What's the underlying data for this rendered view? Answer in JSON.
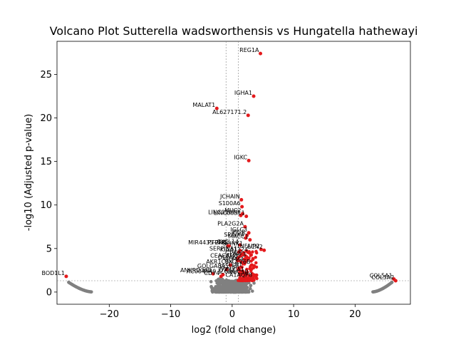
{
  "chart_data": {
    "type": "scatter",
    "title": "Volcano Plot Sutterella wadsworthensis vs Hungatella hathewayi",
    "xlabel": "log2 (fold change)",
    "ylabel": "-log10 (Adjusted p-value)",
    "xlim": [
      -28.5,
      29.0
    ],
    "ylim": [
      -1.4,
      28.8
    ],
    "xticks": [
      -20,
      -10,
      0,
      10,
      20
    ],
    "yticks": [
      0,
      5,
      10,
      15,
      20,
      25
    ],
    "grid": false,
    "thresholds": {
      "fold_change_lines": [
        -1,
        1
      ],
      "pvalue_line": 1.3
    },
    "colors": {
      "significant": "#e41a1c",
      "nonsignificant": "#808080",
      "threshold": "#808080"
    },
    "significant_points": [
      {
        "label": "REG1A",
        "x": 4.6,
        "y": 27.4
      },
      {
        "label": "IGHA1",
        "x": 3.5,
        "y": 22.5
      },
      {
        "label": "MALAT1",
        "x": -2.5,
        "y": 21.1
      },
      {
        "label": "AL627171.2",
        "x": 2.6,
        "y": 20.3
      },
      {
        "label": "IGKC",
        "x": 2.7,
        "y": 15.1
      },
      {
        "label": "JCHAIN",
        "x": 1.5,
        "y": 10.6
      },
      {
        "label": "S100A6",
        "x": 1.6,
        "y": 9.8
      },
      {
        "label": "MUC2",
        "x": 1.7,
        "y": 9.0
      },
      {
        "label": "LINC01088",
        "x": 1.4,
        "y": 8.8
      },
      {
        "label": "LINC00511",
        "x": 2.3,
        "y": 8.7
      },
      {
        "label": "PLA2G2A",
        "x": 2.1,
        "y": 7.5
      },
      {
        "label": "IGLC3",
        "x": 2.7,
        "y": 6.8
      },
      {
        "label": "PIGR",
        "x": 2.4,
        "y": 6.5
      },
      {
        "label": "SPINK4",
        "x": 2.2,
        "y": 6.2
      },
      {
        "label": "MACC1",
        "x": 2.9,
        "y": 6.0
      },
      {
        "label": "MIR4435-2HG",
        "x": -0.5,
        "y": 5.3
      },
      {
        "label": "PTPRD",
        "x": -0.7,
        "y": 5.3
      },
      {
        "label": "CXCL14",
        "x": 1.3,
        "y": 5.4
      },
      {
        "label": "TNFAIP2",
        "x": 4.7,
        "y": 4.9
      },
      {
        "label": "LCN2",
        "x": 5.2,
        "y": 4.8
      },
      {
        "label": "SERPINA1",
        "x": 1.1,
        "y": 4.6
      },
      {
        "label": "KIAA1324",
        "x": 2.8,
        "y": 4.5
      },
      {
        "label": "DEFA6",
        "x": 0.9,
        "y": 3.6
      },
      {
        "label": "OLFM4",
        "x": 2.1,
        "y": 3.4
      },
      {
        "label": "AKR1C3",
        "x": -0.3,
        "y": 3.1
      },
      {
        "label": "CXCL16B",
        "x": 3.2,
        "y": 3.1
      },
      {
        "label": "GOLGA8A",
        "x": -0.9,
        "y": 2.6
      },
      {
        "label": "ANKRD36B",
        "x": -3.1,
        "y": 2.1
      },
      {
        "label": "AC004540.1",
        "x": -1.5,
        "y": 2.0
      },
      {
        "label": "CD74",
        "x": -1.8,
        "y": 1.8
      },
      {
        "label": "BOD1L1",
        "x": -27.0,
        "y": 1.8
      },
      {
        "label": "COL5A1",
        "x": 26.3,
        "y": 1.5
      },
      {
        "label": "COL5A2",
        "x": 26.6,
        "y": 1.3
      }
    ],
    "extra_labels": [
      {
        "label": "SPINK1",
        "x": 2.0,
        "y": 5.2
      },
      {
        "label": "GPX2",
        "x": 1.6,
        "y": 4.1
      },
      {
        "label": "CEACAM5",
        "x": 1.2,
        "y": 3.8
      },
      {
        "label": "TFF3",
        "x": 2.5,
        "y": 3.9
      },
      {
        "label": "ITLN1",
        "x": 1.9,
        "y": 2.8
      },
      {
        "label": "FCGBP",
        "x": 1.3,
        "y": 2.5
      },
      {
        "label": "CLCA1",
        "x": 2.2,
        "y": 2.2
      },
      {
        "label": "ZG16",
        "x": 0.8,
        "y": 2.0
      },
      {
        "label": "MUC5B",
        "x": 2.9,
        "y": 1.9
      },
      {
        "label": "LYZ",
        "x": -0.4,
        "y": 2.2
      },
      {
        "label": "AQP8",
        "x": 3.5,
        "y": 1.6
      },
      {
        "label": "CA1",
        "x": 1.0,
        "y": 1.6
      }
    ]
  }
}
